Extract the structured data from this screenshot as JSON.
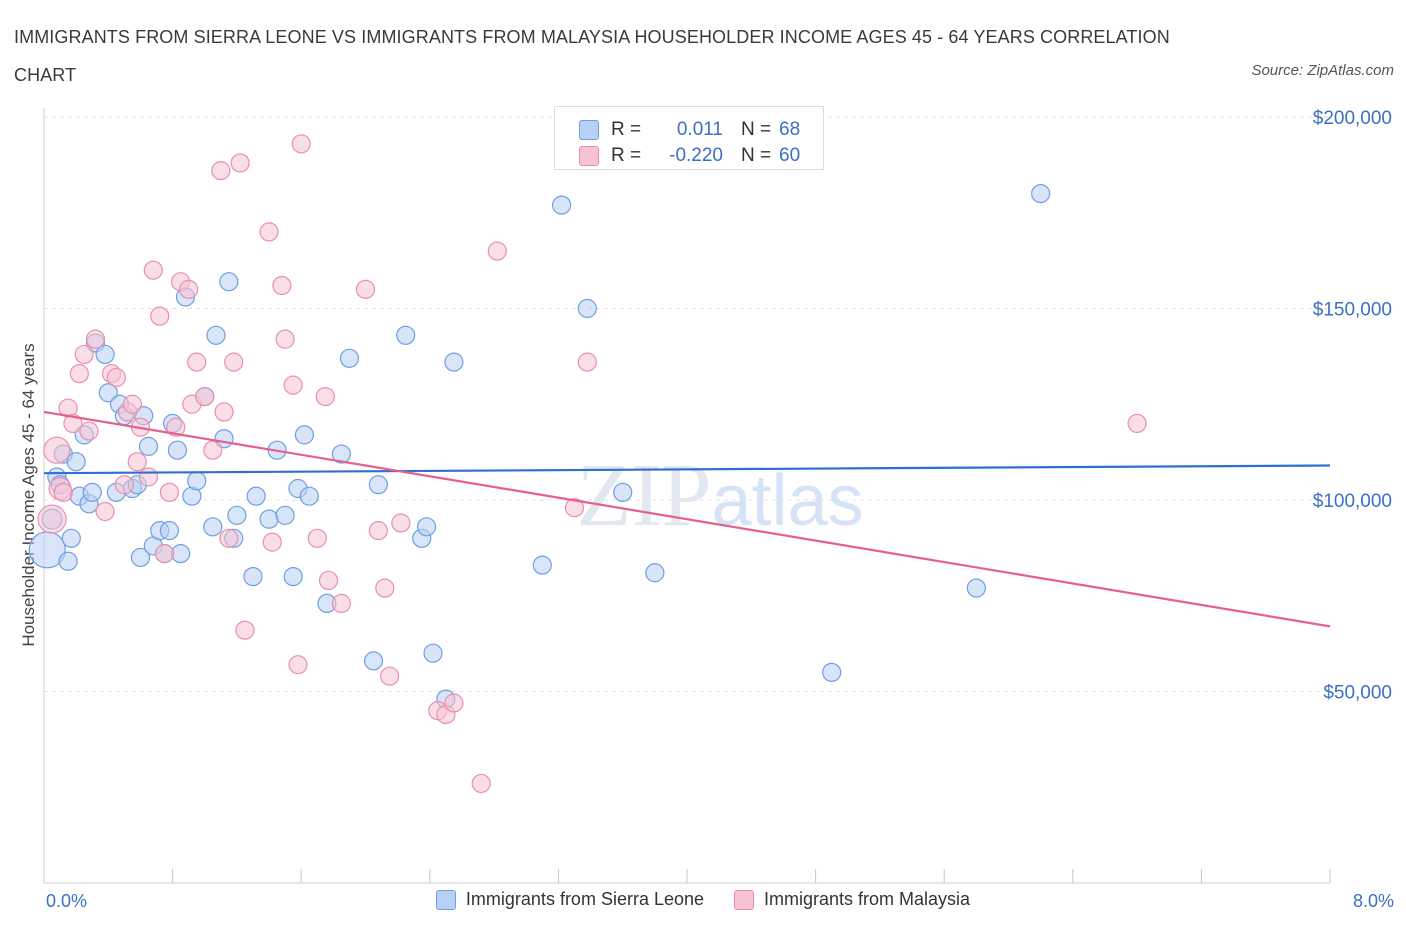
{
  "title": "IMMIGRANTS FROM SIERRA LEONE VS IMMIGRANTS FROM MALAYSIA HOUSEHOLDER INCOME AGES 45 - 64 YEARS CORRELATION CHART",
  "source": "Source: ZipAtlas.com",
  "watermark": "ZIPatlas",
  "stats": {
    "row1": {
      "r_label": "R =",
      "r_value": "0.011",
      "n_label": "N =",
      "n_value": "68"
    },
    "row2": {
      "r_label": "R =",
      "r_value": "-0.220",
      "n_label": "N =",
      "n_value": "60"
    }
  },
  "x_axis": {
    "min_label": "0.0%",
    "max_label": "8.0%"
  },
  "colors": {
    "blue_fill": "#b8d0f4",
    "blue_stroke": "#6e9fe0",
    "blue_line": "#2f6fcf",
    "pink_fill": "#f6c2d4",
    "pink_stroke": "#e88fb0",
    "pink_line": "#e4608e",
    "axis_text": "#3d6fc4",
    "grid": "#e0e0e0"
  },
  "chart_data": {
    "type": "scatter",
    "ylabel": "Householder Income Ages 45 - 64 years",
    "xlabel": "",
    "xlim": [
      0,
      8
    ],
    "ylim": [
      0,
      200000
    ],
    "y_ticks": [
      {
        "value": 50000,
        "label": "$50,000"
      },
      {
        "value": 100000,
        "label": "$100,000"
      },
      {
        "value": 150000,
        "label": "$150,000"
      },
      {
        "value": 200000,
        "label": "$200,000"
      }
    ],
    "series": [
      {
        "name": "Immigrants from Sierra Leone",
        "color": "#6e9fe0",
        "trend": [
          [
            0,
            107000
          ],
          [
            8,
            109000
          ]
        ],
        "points": [
          [
            0.02,
            87,
            18
          ],
          [
            0.05,
            95,
            10
          ],
          [
            0.08,
            106,
            9
          ],
          [
            0.1,
            104,
            9
          ],
          [
            0.12,
            112,
            9
          ],
          [
            0.15,
            84,
            9
          ],
          [
            0.17,
            90,
            9
          ],
          [
            0.2,
            110,
            9
          ],
          [
            0.22,
            101,
            9
          ],
          [
            0.25,
            117,
            9
          ],
          [
            0.28,
            99,
            9
          ],
          [
            0.3,
            102,
            9
          ],
          [
            0.32,
            141,
            9
          ],
          [
            0.38,
            138,
            9
          ],
          [
            0.4,
            128,
            9
          ],
          [
            0.45,
            102,
            9
          ],
          [
            0.47,
            125,
            9
          ],
          [
            0.5,
            122,
            9
          ],
          [
            0.55,
            103,
            9
          ],
          [
            0.58,
            104,
            9
          ],
          [
            0.6,
            85,
            9
          ],
          [
            0.62,
            122,
            9
          ],
          [
            0.65,
            114,
            9
          ],
          [
            0.68,
            88,
            9
          ],
          [
            0.72,
            92,
            9
          ],
          [
            0.75,
            86,
            9
          ],
          [
            0.78,
            92,
            9
          ],
          [
            0.8,
            120,
            9
          ],
          [
            0.83,
            113,
            9
          ],
          [
            0.85,
            86,
            9
          ],
          [
            0.88,
            153,
            9
          ],
          [
            0.92,
            101,
            9
          ],
          [
            0.95,
            105,
            9
          ],
          [
            1.0,
            127,
            9
          ],
          [
            1.05,
            93,
            9
          ],
          [
            1.07,
            143,
            9
          ],
          [
            1.12,
            116,
            9
          ],
          [
            1.15,
            157,
            9
          ],
          [
            1.18,
            90,
            9
          ],
          [
            1.2,
            96,
            9
          ],
          [
            1.3,
            80,
            9
          ],
          [
            1.32,
            101,
            9
          ],
          [
            1.4,
            95,
            9
          ],
          [
            1.45,
            113,
            9
          ],
          [
            1.5,
            96,
            9
          ],
          [
            1.55,
            80,
            9
          ],
          [
            1.58,
            103,
            9
          ],
          [
            1.62,
            117,
            9
          ],
          [
            1.65,
            101,
            9
          ],
          [
            1.76,
            73,
            9
          ],
          [
            1.85,
            112,
            9
          ],
          [
            1.9,
            137,
            9
          ],
          [
            2.05,
            58,
            9
          ],
          [
            2.08,
            104,
            9
          ],
          [
            2.25,
            143,
            9
          ],
          [
            2.35,
            90,
            9
          ],
          [
            2.38,
            93,
            9
          ],
          [
            2.42,
            60,
            9
          ],
          [
            2.5,
            48,
            9
          ],
          [
            2.55,
            136,
            9
          ],
          [
            3.1,
            83,
            9
          ],
          [
            3.22,
            177,
            9
          ],
          [
            3.38,
            150,
            9
          ],
          [
            3.6,
            102,
            9
          ],
          [
            3.8,
            81,
            9
          ],
          [
            4.9,
            55,
            9
          ],
          [
            5.8,
            77,
            9
          ],
          [
            6.2,
            180,
            9
          ]
        ]
      },
      {
        "name": "Immigrants from Malaysia",
        "color": "#e88fb0",
        "trend": [
          [
            0,
            123000
          ],
          [
            8,
            67000
          ]
        ],
        "points": [
          [
            0.05,
            95,
            14
          ],
          [
            0.08,
            113,
            13
          ],
          [
            0.1,
            103,
            11
          ],
          [
            0.15,
            124,
            9
          ],
          [
            0.18,
            120,
            9
          ],
          [
            0.22,
            133,
            9
          ],
          [
            0.25,
            138,
            9
          ],
          [
            0.28,
            118,
            9
          ],
          [
            0.32,
            142,
            9
          ],
          [
            0.38,
            97,
            9
          ],
          [
            0.42,
            133,
            9
          ],
          [
            0.45,
            132,
            9
          ],
          [
            0.5,
            104,
            9
          ],
          [
            0.52,
            123,
            9
          ],
          [
            0.55,
            125,
            9
          ],
          [
            0.58,
            110,
            9
          ],
          [
            0.6,
            119,
            9
          ],
          [
            0.65,
            106,
            9
          ],
          [
            0.68,
            160,
            9
          ],
          [
            0.72,
            148,
            9
          ],
          [
            0.75,
            86,
            9
          ],
          [
            0.78,
            102,
            9
          ],
          [
            0.82,
            119,
            9
          ],
          [
            0.85,
            157,
            9
          ],
          [
            0.9,
            155,
            9
          ],
          [
            0.92,
            125,
            9
          ],
          [
            0.95,
            136,
            9
          ],
          [
            1.0,
            127,
            9
          ],
          [
            1.05,
            113,
            9
          ],
          [
            1.1,
            186,
            9
          ],
          [
            1.12,
            123,
            9
          ],
          [
            1.15,
            90,
            9
          ],
          [
            1.18,
            136,
            9
          ],
          [
            1.22,
            188,
            9
          ],
          [
            1.25,
            66,
            9
          ],
          [
            1.4,
            170,
            9
          ],
          [
            1.42,
            89,
            9
          ],
          [
            1.48,
            156,
            9
          ],
          [
            1.5,
            142,
            9
          ],
          [
            1.55,
            130,
            9
          ],
          [
            1.58,
            57,
            9
          ],
          [
            1.6,
            193,
            9
          ],
          [
            1.7,
            90,
            9
          ],
          [
            1.75,
            127,
            9
          ],
          [
            1.77,
            79,
            9
          ],
          [
            1.85,
            73,
            9
          ],
          [
            2.0,
            155,
            9
          ],
          [
            2.08,
            92,
            9
          ],
          [
            2.12,
            77,
            9
          ],
          [
            2.15,
            54,
            9
          ],
          [
            2.22,
            94,
            9
          ],
          [
            2.45,
            45,
            9
          ],
          [
            2.5,
            44,
            9
          ],
          [
            2.55,
            47,
            9
          ],
          [
            2.72,
            26,
            9
          ],
          [
            2.82,
            165,
            9
          ],
          [
            3.3,
            98,
            9
          ],
          [
            3.38,
            136,
            9
          ],
          [
            6.8,
            120,
            9
          ],
          [
            0.12,
            102,
            9
          ]
        ]
      }
    ]
  },
  "legend": {
    "item1": "Immigrants from Sierra Leone",
    "item2": "Immigrants from Malaysia"
  }
}
